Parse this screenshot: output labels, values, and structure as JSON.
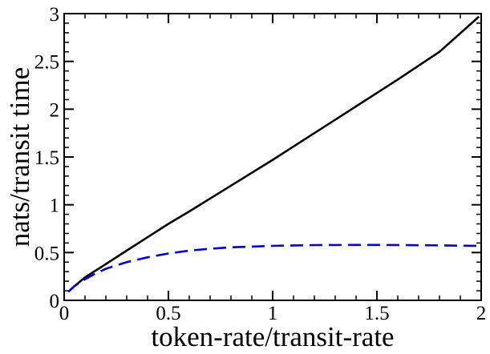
{
  "chart_data": {
    "type": "line",
    "xlabel": "token-rate/transit-rate",
    "ylabel": "nats/transit time",
    "xlim": [
      0,
      2
    ],
    "ylim": [
      0,
      3
    ],
    "x_major_ticks": [
      0,
      0.5,
      1,
      1.5,
      2
    ],
    "x_tick_labels": [
      "0",
      "0.5",
      "1",
      "1.5",
      "2"
    ],
    "y_major_ticks": [
      0,
      0.5,
      1,
      1.5,
      2,
      2.5,
      3
    ],
    "y_tick_labels": [
      "0",
      "0.5",
      "1",
      "1.5",
      "2",
      "2.5",
      "3"
    ],
    "x_minor_step": 0.1,
    "y_minor_step": 0.1,
    "grid": false,
    "legend": "none",
    "series": [
      {
        "color": "#000000",
        "style": "solid",
        "x": [
          0.02,
          0.05,
          0.1,
          0.15,
          0.2,
          0.3,
          0.4,
          0.5,
          0.6,
          0.8,
          1.0,
          1.2,
          1.4,
          1.6,
          1.8,
          1.99
        ],
        "y": [
          0.09,
          0.15,
          0.24,
          0.31,
          0.38,
          0.52,
          0.66,
          0.8,
          0.93,
          1.2,
          1.47,
          1.75,
          2.03,
          2.31,
          2.6,
          2.97
        ]
      },
      {
        "color": "#0000cc",
        "style": "dashed",
        "x": [
          0.02,
          0.05,
          0.1,
          0.15,
          0.2,
          0.3,
          0.4,
          0.5,
          0.6,
          0.7,
          0.8,
          1.0,
          1.2,
          1.4,
          1.6,
          1.8,
          1.99
        ],
        "y": [
          0.09,
          0.15,
          0.22,
          0.28,
          0.33,
          0.4,
          0.45,
          0.49,
          0.52,
          0.54,
          0.555,
          0.57,
          0.578,
          0.58,
          0.579,
          0.575,
          0.57
        ]
      }
    ]
  }
}
